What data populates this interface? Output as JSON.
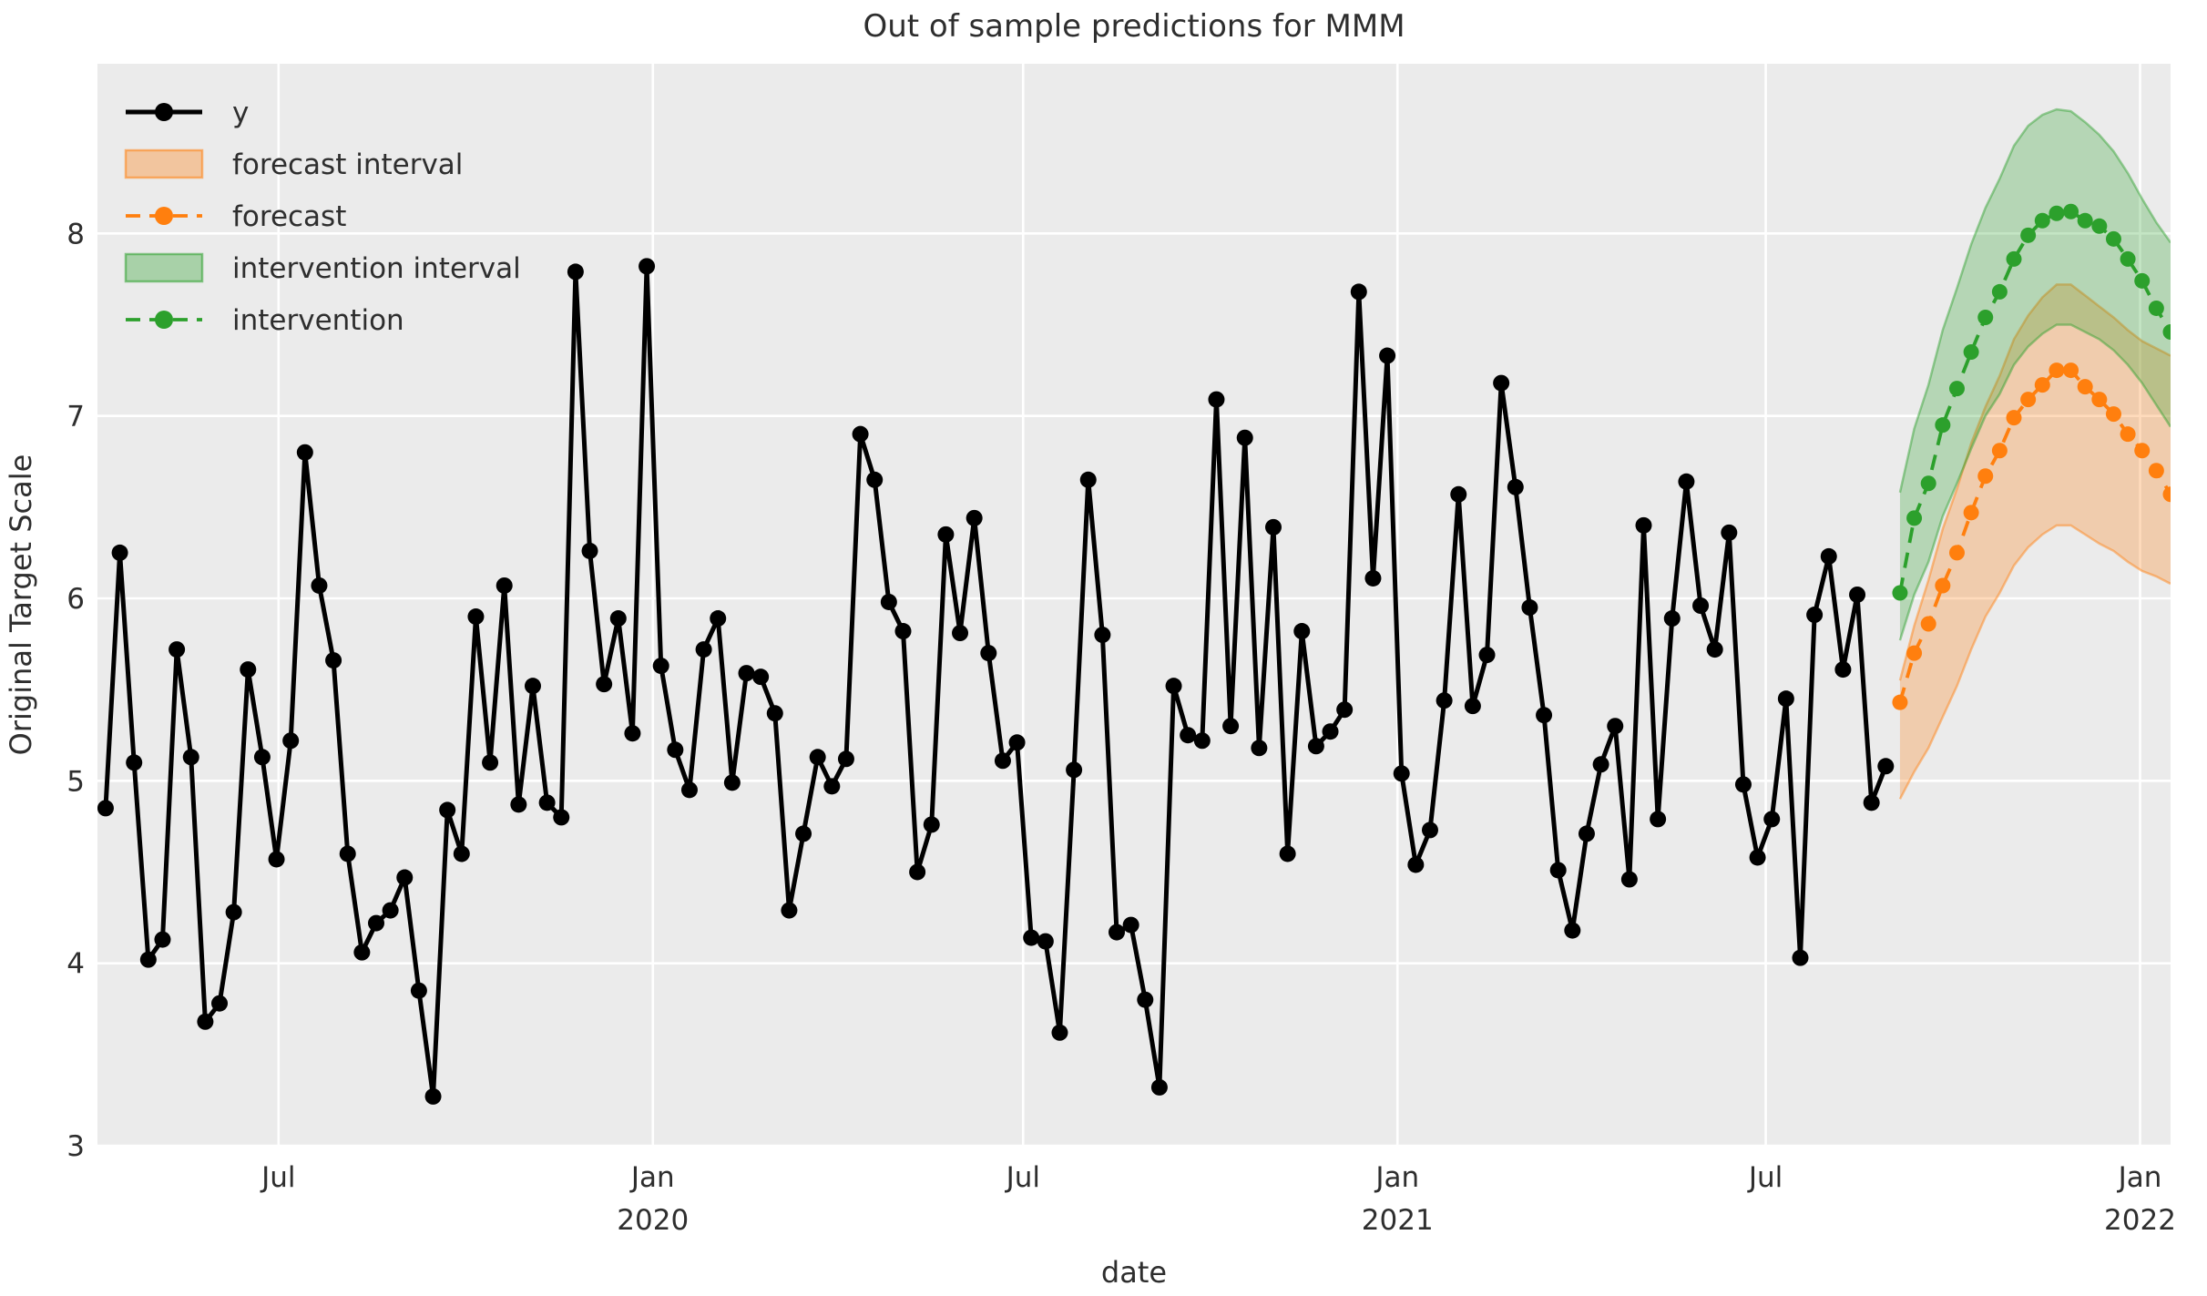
{
  "title": "Out of sample predictions for MMM",
  "axes": {
    "xlabel": "date",
    "ylabel": "Original Target Scale",
    "y_ticks": [
      "3",
      "4",
      "5",
      "6",
      "7",
      "8"
    ],
    "x_ticks": [
      {
        "month": "Jul",
        "year": "",
        "date": "2019-07-01"
      },
      {
        "month": "Jan",
        "year": "2020",
        "date": "2020-01-01"
      },
      {
        "month": "Jul",
        "year": "",
        "date": "2020-07-01"
      },
      {
        "month": "Jan",
        "year": "2021",
        "date": "2021-01-01"
      },
      {
        "month": "Jul",
        "year": "",
        "date": "2021-07-01"
      },
      {
        "month": "Jan",
        "year": "2022",
        "date": "2022-01-01"
      }
    ]
  },
  "legend": [
    {
      "label": "y",
      "type": "line-dot",
      "color": "#000000"
    },
    {
      "label": "forecast interval",
      "type": "patch",
      "color": "#ff7f0e"
    },
    {
      "label": "forecast",
      "type": "dash-dot",
      "color": "#ff7f0e"
    },
    {
      "label": "intervention interval",
      "type": "patch",
      "color": "#2ca02c"
    },
    {
      "label": "intervention",
      "type": "dash-dot",
      "color": "#2ca02c"
    }
  ],
  "style": {
    "figure_bg": "#ffffff",
    "plot_bg": "#ebebeb",
    "grid": "#ffffff",
    "text": "#2e2e2e",
    "black_series": "#000000",
    "orange": "#ff7f0e",
    "green": "#2ca02c",
    "band_alpha": 0.28
  },
  "chart_data": {
    "type": "line",
    "x_domain": [
      "2019-04-03",
      "2022-01-16"
    ],
    "y_domain": [
      3,
      8.93
    ],
    "grid": true,
    "legend_position": "upper-left",
    "series": [
      {
        "name": "y",
        "style": "solid-dot",
        "color": "#000000",
        "start_date": "2019-04-07",
        "freq_days": 7,
        "values": [
          4.85,
          6.25,
          5.1,
          4.02,
          4.13,
          5.72,
          5.13,
          3.68,
          3.78,
          4.28,
          5.61,
          5.13,
          4.57,
          5.22,
          6.8,
          6.07,
          5.66,
          4.6,
          4.06,
          4.22,
          4.29,
          4.47,
          3.85,
          3.27,
          4.84,
          4.6,
          5.9,
          5.1,
          6.07,
          4.87,
          5.52,
          4.88,
          4.8,
          7.79,
          6.26,
          5.53,
          5.89,
          5.26,
          7.82,
          5.63,
          5.17,
          4.95,
          5.72,
          5.89,
          4.99,
          5.59,
          5.57,
          5.37,
          4.29,
          4.71,
          5.13,
          4.97,
          5.12,
          6.9,
          6.65,
          5.98,
          5.82,
          4.5,
          4.76,
          6.35,
          5.81,
          6.44,
          5.7,
          5.11,
          5.21,
          4.14,
          4.12,
          3.62,
          5.06,
          6.65,
          5.8,
          4.17,
          4.21,
          3.8,
          3.32,
          5.52,
          5.25,
          5.22,
          7.09,
          5.3,
          6.88,
          5.18,
          6.39,
          4.6,
          5.82,
          5.19,
          5.27,
          5.39,
          7.68,
          6.11,
          7.33,
          5.04,
          4.54,
          4.73,
          5.44,
          6.57,
          5.41,
          5.69,
          7.18,
          6.61,
          5.95,
          5.36,
          4.51,
          4.18,
          4.71,
          5.09,
          5.3,
          4.46,
          6.4,
          4.79,
          5.89,
          6.64,
          5.96,
          5.72,
          6.36,
          4.98,
          4.58,
          4.79,
          5.45,
          4.03,
          5.91,
          6.23,
          5.61,
          6.02,
          4.88,
          5.08
        ]
      },
      {
        "name": "forecast",
        "style": "dashed-dot",
        "color": "#ff7f0e",
        "start_date": "2021-09-05",
        "freq_days": 7,
        "values": [
          5.43,
          5.7,
          5.86,
          6.07,
          6.25,
          6.47,
          6.67,
          6.81,
          6.99,
          7.09,
          7.17,
          7.25,
          7.25,
          7.16,
          7.09,
          7.01,
          6.9,
          6.81,
          6.7,
          6.57
        ],
        "interval_name": "forecast interval",
        "lower": [
          4.9,
          5.05,
          5.18,
          5.35,
          5.52,
          5.72,
          5.9,
          6.03,
          6.18,
          6.28,
          6.35,
          6.4,
          6.4,
          6.35,
          6.3,
          6.26,
          6.2,
          6.15,
          6.12,
          6.08
        ],
        "upper": [
          5.55,
          5.85,
          6.1,
          6.38,
          6.6,
          6.85,
          7.05,
          7.22,
          7.42,
          7.55,
          7.65,
          7.72,
          7.72,
          7.66,
          7.6,
          7.54,
          7.47,
          7.41,
          7.37,
          7.33
        ]
      },
      {
        "name": "intervention",
        "style": "dashed-dot",
        "color": "#2ca02c",
        "start_date": "2021-09-05",
        "freq_days": 7,
        "values": [
          6.03,
          6.44,
          6.63,
          6.95,
          7.15,
          7.35,
          7.54,
          7.68,
          7.86,
          7.99,
          8.07,
          8.11,
          8.12,
          8.07,
          8.04,
          7.97,
          7.86,
          7.74,
          7.59,
          7.46
        ],
        "interval_name": "intervention interval",
        "lower": [
          5.77,
          6.02,
          6.2,
          6.45,
          6.63,
          6.82,
          7.0,
          7.12,
          7.28,
          7.38,
          7.45,
          7.5,
          7.5,
          7.46,
          7.42,
          7.36,
          7.28,
          7.18,
          7.06,
          6.94
        ],
        "upper": [
          6.58,
          6.93,
          7.17,
          7.47,
          7.7,
          7.94,
          8.14,
          8.3,
          8.48,
          8.59,
          8.65,
          8.68,
          8.67,
          8.61,
          8.54,
          8.45,
          8.33,
          8.19,
          8.06,
          7.95
        ]
      }
    ]
  }
}
